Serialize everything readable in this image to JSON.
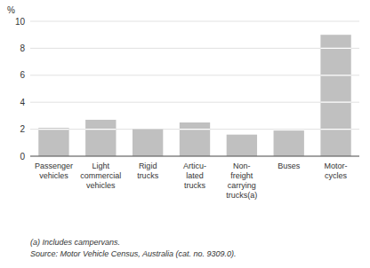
{
  "chart_data": {
    "type": "bar",
    "categories": [
      "Passenger\nvehicles",
      "Light\ncommercial\nvehicles",
      "Rigid\ntrucks",
      "Articu-\nlated\ntrucks",
      "Non-\nfreight\ncarrying\ntrucks(a)",
      "Buses",
      "Motor-\ncycles"
    ],
    "values": [
      2.1,
      2.7,
      2.0,
      2.5,
      1.6,
      1.9,
      9.0
    ],
    "color": "#c0c0c0",
    "ylabel": "%",
    "ylim": [
      0,
      10
    ],
    "yticks": [
      0,
      2,
      4,
      6,
      8,
      10
    ],
    "grid": true,
    "annotations": [
      "(a) Includes campervans.",
      "Source: Motor Vehicle Census, Australia (cat.  no.  9309.0)."
    ]
  }
}
